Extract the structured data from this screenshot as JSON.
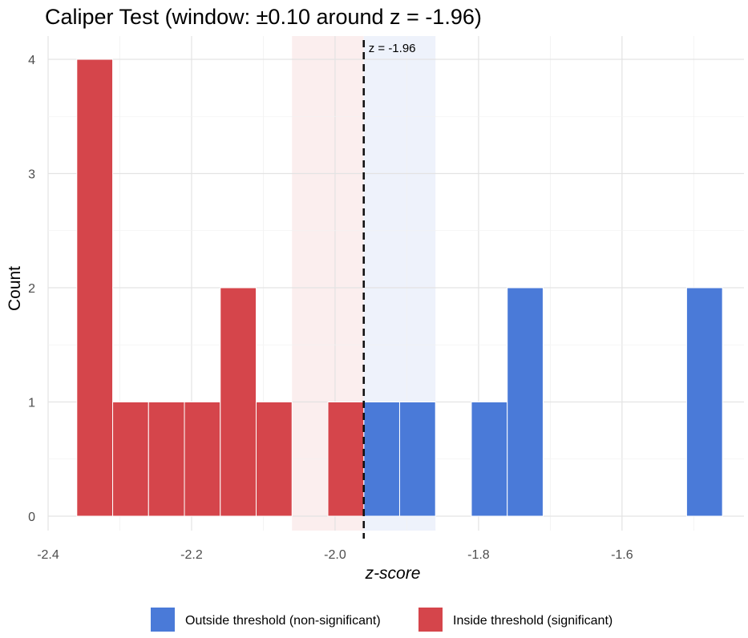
{
  "chart_data": {
    "type": "bar",
    "title": "Caliper Test (window: ±0.10 around z = -1.96)",
    "xlabel": "z-score",
    "ylabel": "Count",
    "xlim": [
      -2.4,
      -1.43
    ],
    "ylim": [
      0,
      4.2
    ],
    "x_ticks": [
      "-2.4",
      "-2.2",
      "-2.0",
      "-1.8",
      "-1.6"
    ],
    "x_tick_values": [
      -2.4,
      -2.2,
      -2.0,
      -1.8,
      -1.6
    ],
    "y_ticks": [
      "0",
      "1",
      "2",
      "3",
      "4"
    ],
    "y_tick_values": [
      0,
      1,
      2,
      3,
      4
    ],
    "bin_width": 0.05,
    "threshold": -1.96,
    "threshold_label": "z = -1.96",
    "caliper_window": [
      -2.06,
      -1.86
    ],
    "caliper_colors": {
      "inside": "#fbeeee",
      "outside": "#eef2fb"
    },
    "grid": true,
    "legend_position": "bottom",
    "series": [
      {
        "name": "Outside threshold (non-significant)",
        "color": "#4a7ad8",
        "bins": [
          {
            "x0": -1.96,
            "x1": -1.91,
            "count": 1
          },
          {
            "x0": -1.91,
            "x1": -1.86,
            "count": 1
          },
          {
            "x0": -1.81,
            "x1": -1.76,
            "count": 1
          },
          {
            "x0": -1.76,
            "x1": -1.71,
            "count": 2
          },
          {
            "x0": -1.51,
            "x1": -1.46,
            "count": 2
          }
        ]
      },
      {
        "name": "Inside threshold (significant)",
        "color": "#d5454b",
        "bins": [
          {
            "x0": -2.36,
            "x1": -2.31,
            "count": 4
          },
          {
            "x0": -2.31,
            "x1": -2.26,
            "count": 1
          },
          {
            "x0": -2.26,
            "x1": -2.21,
            "count": 1
          },
          {
            "x0": -2.21,
            "x1": -2.16,
            "count": 1
          },
          {
            "x0": -2.16,
            "x1": -2.11,
            "count": 2
          },
          {
            "x0": -2.11,
            "x1": -2.06,
            "count": 1
          },
          {
            "x0": -2.01,
            "x1": -1.96,
            "count": 1
          }
        ]
      }
    ]
  }
}
